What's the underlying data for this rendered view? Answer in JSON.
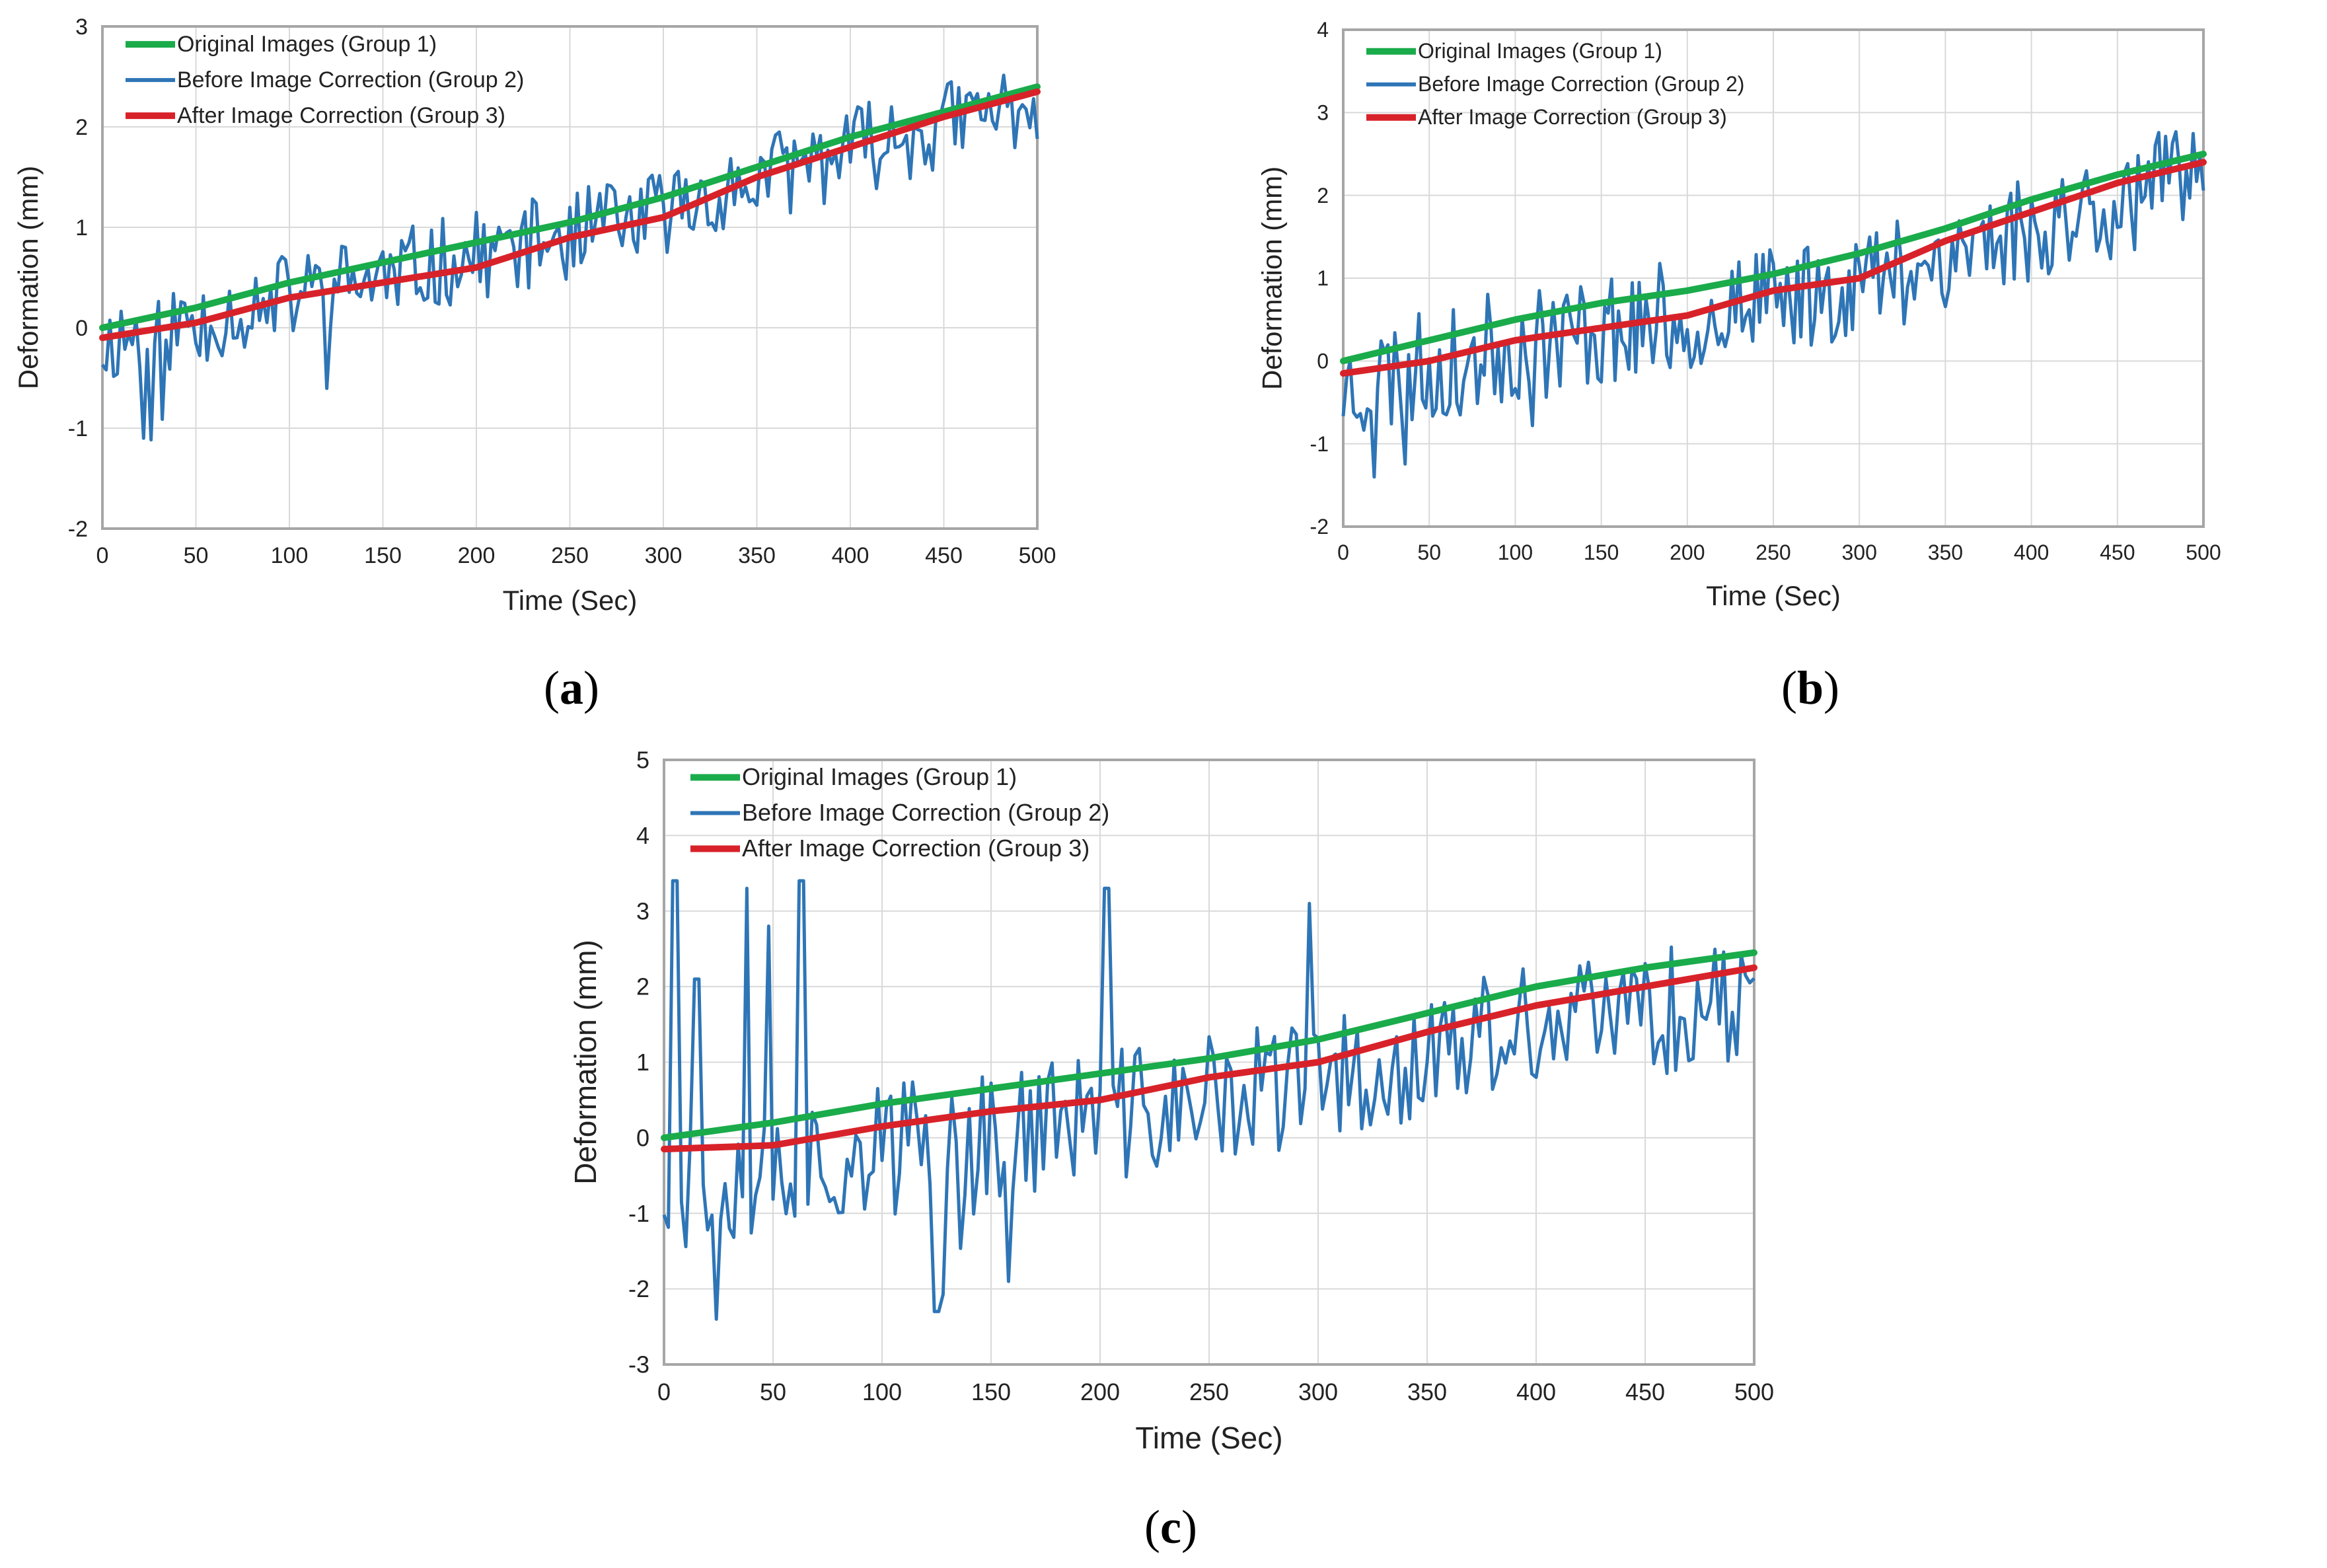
{
  "figure": {
    "panels": [
      {
        "label_open": "(",
        "label_letter": "a",
        "label_close": ")"
      },
      {
        "label_open": "(",
        "label_letter": "b",
        "label_close": ")"
      },
      {
        "label_open": "(",
        "label_letter": "c",
        "label_close": ")"
      }
    ]
  },
  "colors": {
    "group1": "#1aab4b",
    "group2": "#2e75b6",
    "group3": "#d8222a",
    "grid": "#d9d9d9",
    "axis": "#a6a6a6"
  },
  "chart_data": [
    {
      "type": "line",
      "title": "",
      "xlabel": "Time (Sec)",
      "ylabel": "Deformation (mm)",
      "xlim": [
        0,
        500
      ],
      "ylim": [
        -2,
        3
      ],
      "xticks": [
        0,
        50,
        100,
        150,
        200,
        250,
        300,
        350,
        400,
        450,
        500
      ],
      "yticks": [
        -2,
        -1,
        0,
        1,
        2,
        3
      ],
      "grid": true,
      "legend_position": "top-left",
      "noise": {
        "seed": 11,
        "amp": 0.45,
        "offset": 0.0,
        "spikes": []
      },
      "series": [
        {
          "name": "Original Images (Group 1)",
          "x": [
            0,
            50,
            100,
            150,
            200,
            250,
            300,
            350,
            400,
            450,
            500
          ],
          "y": [
            0.0,
            0.2,
            0.45,
            0.65,
            0.85,
            1.05,
            1.3,
            1.6,
            1.9,
            2.15,
            2.4
          ]
        },
        {
          "name": "Before Image Correction (Group 2)",
          "x": [
            0,
            10,
            25,
            50,
            75,
            100,
            125,
            150,
            175,
            200,
            225,
            250,
            275,
            300,
            325,
            350,
            375,
            400,
            425,
            450,
            475,
            500
          ],
          "y": [
            -0.3,
            -0.9,
            -1.15,
            -0.3,
            0.0,
            0.1,
            -0.78,
            0.2,
            0.3,
            0.45,
            0.3,
            0.6,
            0.8,
            0.95,
            1.2,
            1.25,
            1.5,
            1.8,
            1.7,
            2.1,
            2.2,
            2.3
          ]
        },
        {
          "name": "After Image Correction (Group 3)",
          "x": [
            0,
            50,
            100,
            150,
            200,
            250,
            300,
            350,
            400,
            450,
            500
          ],
          "y": [
            -0.1,
            0.05,
            0.3,
            0.45,
            0.6,
            0.9,
            1.1,
            1.5,
            1.8,
            2.1,
            2.35
          ]
        }
      ]
    },
    {
      "type": "line",
      "title": "",
      "xlabel": "Time (Sec)",
      "ylabel": "Deformation (mm)",
      "xlim": [
        0,
        500
      ],
      "ylim": [
        -2,
        4
      ],
      "xticks": [
        0,
        50,
        100,
        150,
        200,
        250,
        300,
        350,
        400,
        450,
        500
      ],
      "yticks": [
        -2,
        -1,
        0,
        1,
        2,
        3,
        4
      ],
      "grid": true,
      "legend_position": "top-left",
      "noise": {
        "seed": 23,
        "amp": 0.7,
        "offset": -0.1,
        "spikes": []
      },
      "series": [
        {
          "name": "Original Images (Group 1)",
          "x": [
            0,
            50,
            100,
            150,
            200,
            250,
            300,
            350,
            400,
            450,
            500
          ],
          "y": [
            0.0,
            0.25,
            0.5,
            0.7,
            0.85,
            1.05,
            1.3,
            1.6,
            1.95,
            2.25,
            2.5
          ]
        },
        {
          "name": "Before Image Correction (Group 2)",
          "x": [
            0,
            25,
            50,
            100,
            125,
            150,
            175,
            200,
            225,
            250,
            275,
            300,
            325,
            350,
            375,
            400,
            425,
            450,
            475,
            500
          ],
          "y": [
            -0.5,
            -1.75,
            -0.6,
            -0.3,
            -1.5,
            -0.2,
            0.2,
            0.3,
            0.5,
            0.6,
            0.8,
            0.9,
            1.1,
            1.3,
            1.4,
            1.5,
            1.6,
            1.8,
            1.9,
            2.0
          ]
        },
        {
          "name": "After Image Correction (Group 3)",
          "x": [
            0,
            50,
            100,
            150,
            200,
            250,
            300,
            350,
            400,
            450,
            500
          ],
          "y": [
            -0.15,
            0.0,
            0.25,
            0.4,
            0.55,
            0.85,
            1.0,
            1.45,
            1.8,
            2.15,
            2.4
          ]
        }
      ]
    },
    {
      "type": "line",
      "title": "",
      "xlabel": "Time (Sec)",
      "ylabel": "Deformation (mm)",
      "xlim": [
        0,
        500
      ],
      "ylim": [
        -3,
        5
      ],
      "xticks": [
        0,
        50,
        100,
        150,
        200,
        250,
        300,
        350,
        400,
        450,
        500
      ],
      "yticks": [
        -3,
        -2,
        -1,
        0,
        1,
        2,
        3,
        4,
        5
      ],
      "grid": true,
      "legend_position": "top-left",
      "noise": {
        "seed": 37,
        "amp": 0.9,
        "offset": -0.3,
        "spikes": [
          [
            5,
            3.4
          ],
          [
            15,
            2.1
          ],
          [
            38,
            3.3
          ],
          [
            48,
            2.8
          ],
          [
            63,
            3.4
          ],
          [
            203,
            3.3
          ],
          [
            296,
            3.1
          ],
          [
            24,
            -2.4
          ],
          [
            125,
            -2.3
          ],
          [
            158,
            -1.9
          ]
        ]
      },
      "series": [
        {
          "name": "Original Images (Group 1)",
          "x": [
            0,
            50,
            100,
            150,
            200,
            250,
            300,
            350,
            400,
            450,
            500
          ],
          "y": [
            0.0,
            0.2,
            0.45,
            0.65,
            0.85,
            1.05,
            1.3,
            1.65,
            2.0,
            2.25,
            2.45
          ]
        },
        {
          "name": "Before Image Correction (Group 2)",
          "x": [
            0,
            25,
            50,
            75,
            100,
            125,
            150,
            175,
            200,
            225,
            250,
            275,
            300,
            325,
            350,
            375,
            400,
            425,
            450,
            475,
            500
          ],
          "y": [
            -0.8,
            -2.4,
            -0.5,
            -0.8,
            -0.6,
            -2.3,
            -0.4,
            -0.1,
            0.0,
            0.2,
            0.4,
            0.5,
            0.7,
            0.8,
            1.0,
            1.1,
            1.3,
            1.4,
            1.5,
            1.6,
            1.7
          ]
        },
        {
          "name": "After Image Correction (Group 3)",
          "x": [
            0,
            50,
            100,
            150,
            200,
            250,
            300,
            350,
            400,
            450,
            500
          ],
          "y": [
            -0.15,
            -0.1,
            0.15,
            0.35,
            0.5,
            0.8,
            1.0,
            1.4,
            1.75,
            2.0,
            2.25
          ]
        }
      ]
    }
  ]
}
